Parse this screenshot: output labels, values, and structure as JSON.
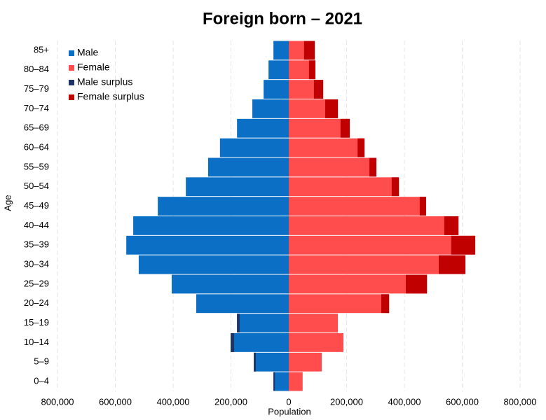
{
  "chart_data": {
    "type": "pyramid",
    "title": "Foreign born – 2021",
    "x_label": "Population",
    "y_label": "Age",
    "categories": [
      "0–4",
      "5–9",
      "10–14",
      "15–19",
      "20–24",
      "25–29",
      "30–34",
      "35–39",
      "40–44",
      "45–49",
      "50–54",
      "55–59",
      "60–64",
      "65–69",
      "70–74",
      "75–79",
      "80–84",
      "85+"
    ],
    "series": [
      {
        "name": "Male",
        "color": "#0b6fc6",
        "values": [
          53000,
          121000,
          201000,
          179000,
          320000,
          405000,
          519000,
          562000,
          538000,
          453000,
          356000,
          279000,
          238000,
          179000,
          126000,
          87000,
          70000,
          53000
        ]
      },
      {
        "name": "Female",
        "color": "#ff4d4d",
        "values": [
          48000,
          114000,
          189000,
          170000,
          347000,
          478000,
          611000,
          645000,
          587000,
          475000,
          381000,
          303000,
          262000,
          211000,
          170000,
          119000,
          92000,
          90000
        ]
      }
    ],
    "surplus_legend": [
      {
        "name": "Male surplus",
        "color": "#1d3563"
      },
      {
        "name": "Female surplus",
        "color": "#c00000"
      }
    ],
    "xlim": [
      -800000,
      800000
    ],
    "xticks": [
      {
        "value": -800000,
        "label": "800,000"
      },
      {
        "value": -600000,
        "label": "600,000"
      },
      {
        "value": -400000,
        "label": "400,000"
      },
      {
        "value": -200000,
        "label": "200,000"
      },
      0,
      {
        "value": 200000,
        "label": "200,000"
      },
      {
        "value": 400000,
        "label": "400,000"
      },
      {
        "value": 600000,
        "label": "600,000"
      },
      {
        "value": 800000,
        "label": "800,000"
      }
    ],
    "grid": true
  }
}
